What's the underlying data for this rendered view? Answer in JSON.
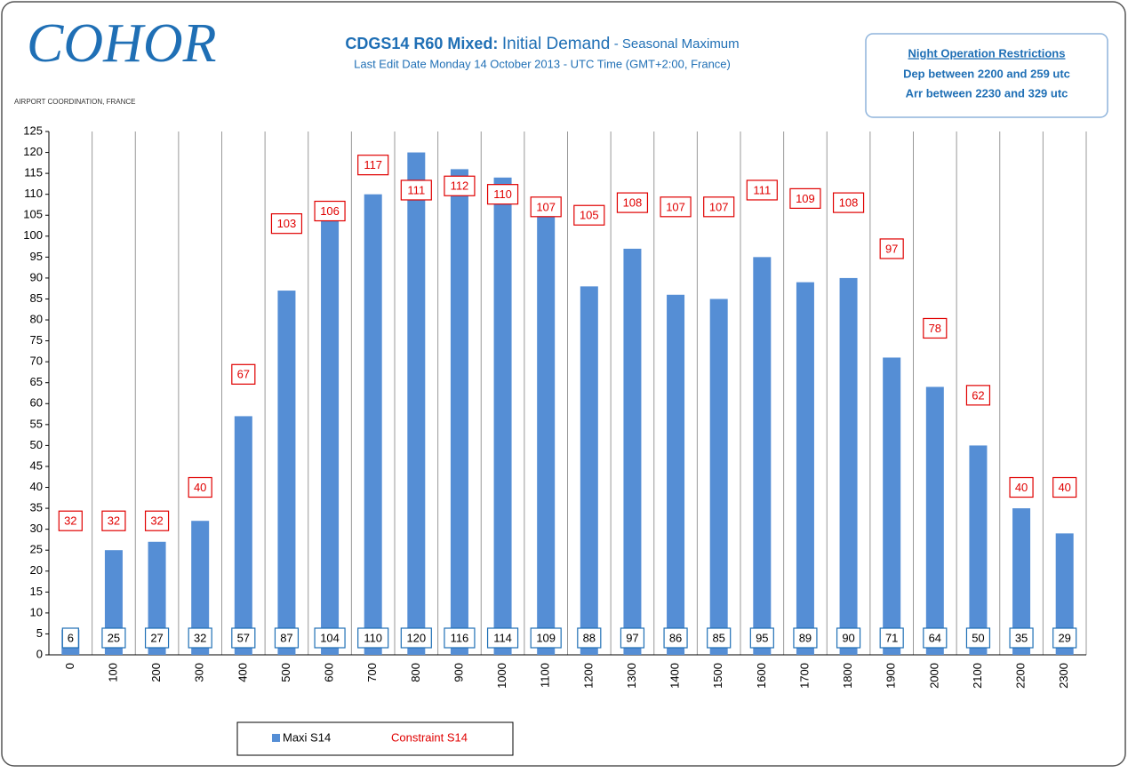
{
  "logo": {
    "name": "COHOR",
    "caption": "AIRPORT COORDINATION, FRANCE"
  },
  "note": {
    "heading": "Night Operation Restrictions",
    "lines": [
      "Dep between 2200 and  259 utc",
      "Arr between 2230 and  329 utc"
    ]
  },
  "chart_data": {
    "type": "bar",
    "title": {
      "bold": "CDGS14 R60 Mixed:",
      "main": "Initial Demand",
      "suffix": "- Seasonal Maximum"
    },
    "subtitle": "Last Edit Date Monday 14 October 2013 - UTC Time (GMT+2:00,  France)",
    "categories": [
      "0",
      "100",
      "200",
      "300",
      "400",
      "500",
      "600",
      "700",
      "800",
      "900",
      "1000",
      "1100",
      "1200",
      "1300",
      "1400",
      "1500",
      "1600",
      "1700",
      "1800",
      "1900",
      "2000",
      "2100",
      "2200",
      "2300"
    ],
    "series": [
      {
        "name": "Maxi S14",
        "color": "#558ed5",
        "values": [
          6,
          25,
          27,
          32,
          57,
          87,
          104,
          110,
          120,
          116,
          114,
          109,
          88,
          97,
          86,
          85,
          95,
          89,
          90,
          71,
          64,
          50,
          35,
          29
        ]
      },
      {
        "name": "Constraint S14",
        "color": "#e00000",
        "values": [
          32,
          32,
          32,
          40,
          67,
          103,
          106,
          117,
          111,
          112,
          110,
          107,
          105,
          108,
          107,
          107,
          111,
          109,
          108,
          97,
          78,
          62,
          40,
          40
        ]
      }
    ],
    "ylim": [
      0,
      125
    ],
    "yticks": [
      0,
      5,
      10,
      15,
      20,
      25,
      30,
      35,
      40,
      45,
      50,
      55,
      60,
      65,
      70,
      75,
      80,
      85,
      90,
      95,
      100,
      105,
      110,
      115,
      120,
      125
    ],
    "grid": true,
    "legend": "bottom"
  }
}
